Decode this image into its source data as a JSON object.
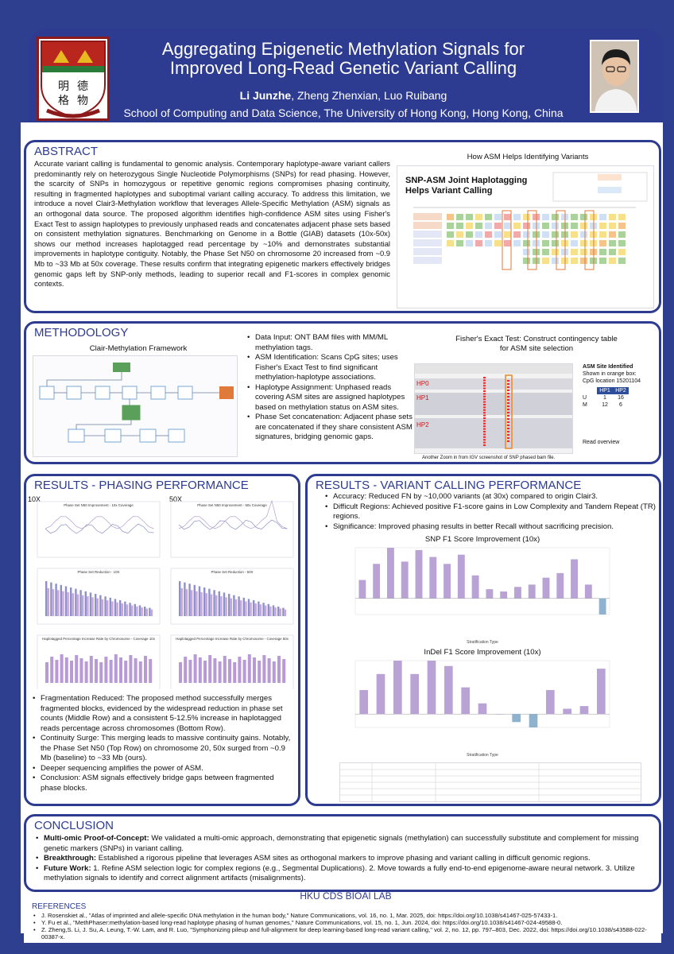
{
  "header": {
    "title_line1": "Aggregating Epigenetic Methylation Signals for",
    "title_line2": "Improved Long-Read Genetic Variant Calling",
    "author_bold": "Li Junzhe",
    "authors_rest": ", Zheng Zhenxian, Luo Ruibang",
    "affiliation": "School of Computing and Data Science, The University of Hong Kong, Hong Kong, China"
  },
  "abstract": {
    "heading": "ABSTRACT",
    "text": "Accurate variant calling is fundamental to genomic analysis. Contemporary haplotype-aware variant callers predominantly rely on heterozygous Single Nucleotide Polymorphisms (SNPs) for read phasing. However, the scarcity of SNPs in homozygous or repetitive genomic regions compromises phasing continuity, resulting in fragmented haplotypes and suboptimal variant calling accuracy. To address this limitation, we introduce a novel Clair3-Methylation workflow that leverages Allele-Specific Methylation (ASM) signals as an orthogonal data source. The proposed algorithm identifies high-confidence ASM sites using Fisher's Exact Test to assign haplotypes to previously unphased reads and concatenates adjacent phase sets based on consistent methylation signatures. Benchmarking on Genome in a Bottle (GIAB) datasets (10x-50x) shows our method increases haplotagged read percentage by ~10% and demonstrates substantial improvements in haplotype contiguity. Notably, the Phase Set N50 on chromosome 20 increased from ~0.9 Mb to ~33 Mb at 50x coverage. These results confirm that integrating epigenetic markers effectively bridges genomic gaps left by SNP-only methods, leading to superior recall and F1-scores in complex genomic contexts.",
    "figure_caption": "How ASM Helps Identifying Variants",
    "figure_title": "SNP-ASM Joint Haplotagging Helps Variant Calling"
  },
  "methodology": {
    "heading": "METHODOLOGY",
    "framework_caption": "Clair-Methylation Framework",
    "bullets": [
      "Data Input: ONT BAM files with MM/ML methylation tags.",
      "ASM Identification: Scans CpG sites; uses Fisher's Exact Test to find significant methylation-haplotype associations.",
      "Haplotype Assignment: Unphased reads covering ASM sites are assigned haplotypes based on methylation status on ASM sites.",
      "Phase Set concatenation: Adjacent phase sets are concatenated if they share consistent ASM signatures, bridging genomic gaps."
    ],
    "fisher_caption_line1": "Fisher's Exact Test: Construct contingency table",
    "fisher_caption_line2": "for ASM site selection",
    "asm_identified": "ASM Site Identified",
    "asm_shown": "Shown in orange box:",
    "asm_location": "CpG location 15201104",
    "table_head": [
      "",
      "HP1",
      "HP2"
    ],
    "table_rows": [
      [
        "U",
        "1",
        "16"
      ],
      [
        "M",
        "12",
        "6"
      ]
    ],
    "igv_labels": [
      "HP0",
      "HP1",
      "HP2"
    ],
    "igv_caption": "Another Zoom in from IGV screenshot of SNP phased bam file.",
    "read_overview": "Read overview"
  },
  "phasing": {
    "heading": "RESULTS - PHASING PERFORMANCE",
    "label_10x": "10X",
    "label_50x": "50X",
    "chart_titles": [
      "Phase Set N50 Improvement - 10x Coverage",
      "Phase Set N50 Improvement - 50x Coverage",
      "Phase Set Reduction - 10X",
      "Phase Set Reduction - 50X",
      "Haplotagged Percentage Increase Rate by Chromosome - Coverage 10x",
      "Haplotagged Percentage Increase Rate by Chromosome - Coverage 50x"
    ],
    "bullets": [
      "Fragmentation Reduced: The proposed method successfully merges fragmented blocks, evidenced by the widespread reduction in phase set counts (Middle Row) and a consistent 5-12.5% increase in haplotagged reads percentage across chromosomes (Bottom Row).",
      "Continuity Surge: This merging leads to massive continuity gains. Notably, the Phase Set N50 (Top Row) on chromosome 20, 50x surged from ~0.9 Mb (baseline) to ~33 Mb (ours).",
      "Deeper sequencing amplifies the power of ASM.",
      "Conclusion: ASM signals effectively bridge gaps between fragmented phase blocks."
    ]
  },
  "variant": {
    "heading": "RESULTS - VARIANT CALLING PERFORMANCE",
    "bullets": [
      "Accuracy: Reduced FN by ~10,000 variants (at 30x) compared to origin Clair3.",
      "Difficult Regions: Achieved positive F1-score gains in Low Complexity and Tandem Repeat (TR) regions.",
      "Significance: Improved phasing results in better Recall without sacrificing precision."
    ],
    "snp_title": "SNP F1 Score Improvement (10x)",
    "indel_title": "InDel F1 Score Improvement (10x)",
    "xlabel": "Stratification Type"
  },
  "chart_data": [
    {
      "type": "bar",
      "title": "SNP F1 Score Improvement (10x)",
      "xlabel": "Stratification Type",
      "values": [
        0.4,
        0.75,
        1.1,
        0.8,
        1.05,
        0.9,
        0.75,
        0.95,
        0.5,
        0.2,
        0.15,
        0.25,
        0.3,
        0.45,
        0.55,
        0.85,
        0.3,
        -0.35
      ]
    },
    {
      "type": "bar",
      "title": "InDel F1 Score Improvement (10x)",
      "xlabel": "Stratification Type",
      "values": [
        0.45,
        0.75,
        1.0,
        0.75,
        1.0,
        0.9,
        0.5,
        0.2,
        0.0,
        -0.15,
        -0.25,
        0.45,
        0.1,
        0.15,
        0.85
      ]
    }
  ],
  "conclusion": {
    "heading": "CONCLUSION",
    "items": [
      {
        "bold": "Multi-omic Proof-of-Concept:",
        "text": " We validated a multi-omic approach, demonstrating that epigenetic signals (methylation) can successfully substitute and complement for missing genetic markers (SNPs) in variant calling."
      },
      {
        "bold": "Breakthrough:",
        "text": " Established a rigorous pipeline that leverages ASM sites as orthogonal markers to improve phasing and variant calling in difficult genomic regions."
      },
      {
        "bold": "Future Work:",
        "text": " 1. Refine ASM selection logic for complex regions (e.g., Segmental Duplications). 2. Move towards a fully end-to-end epigenome-aware neural network. 3. Utilize methylation signals to identify and correct alignment artifacts (misalignments)."
      }
    ]
  },
  "footer": {
    "lab": "HKU CDS BIOAI LAB"
  },
  "references": {
    "heading": "REFERENCES",
    "items": [
      "J. Rosenskiet al., \"Atlas of imprinted and allele-specific DNA methylation in the human body,\" Nature Communications, vol. 16, no. 1, Mar. 2025, doi: https://doi.org/10.1038/s41467-025-57433-1.",
      "Y. Fu et al., \"MethPhaser:methylation-based long-read haplotype phasing of human genomes,\" Nature Communications, vol. 15, no. 1, Jun. 2024, doi: https://doi.org/10.1038/s41467-024-49588-0.",
      "Z. Zheng,S. Li, J. Su, A. Leung, T.-W. Lam, and R. Luo, \"Symphonizing pileup and full-alignment for deep learning-based long-read variant calling,\" vol. 2, no. 12, pp. 797–803, Dec. 2022, doi: https://doi.org/10.1038/s43588-022-00387-x."
    ]
  }
}
